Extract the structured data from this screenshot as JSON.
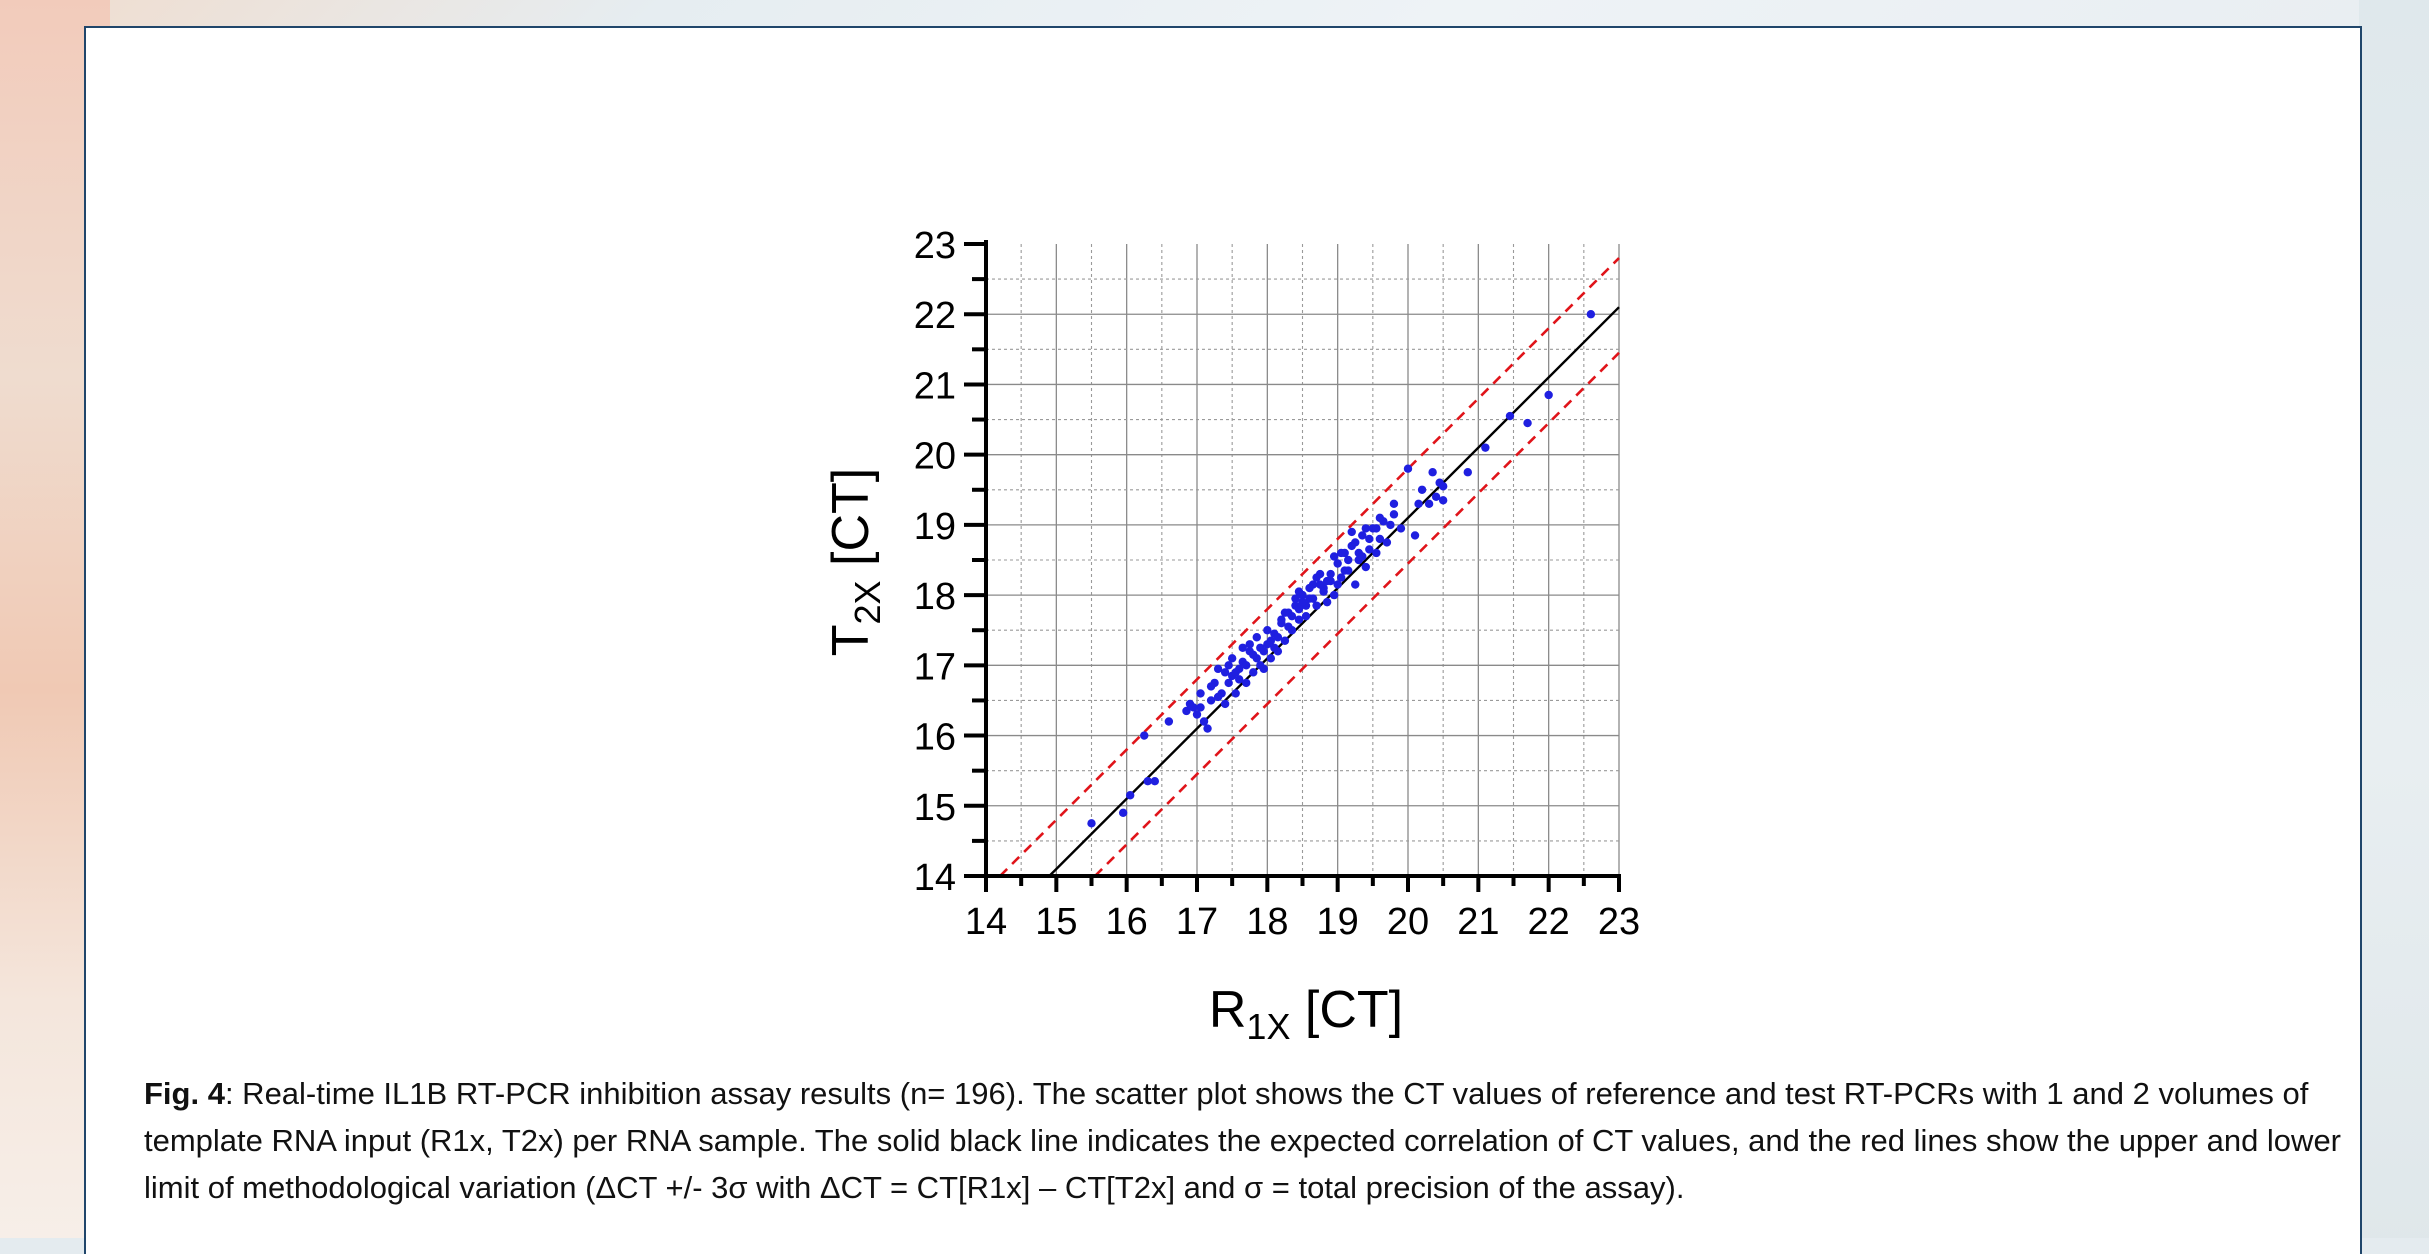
{
  "caption": {
    "label": "Fig. 4",
    "text": ": Real-time IL1B RT-PCR inhibition assay results (n= 196). The scatter plot shows the CT values of reference and test RT-PCRs with 1 and 2 volumes of template RNA input (R1x, T2x) per RNA sample. The solid black line indicates the expected correlation of CT values, and the red lines show the upper and lower limit of methodological variation (ΔCT +/- 3σ with ΔCT = CT[R1x] – CT[T2x] and σ = total precision of the assay)."
  },
  "colors": {
    "points": "#1f1fe0",
    "expected_line": "#000000",
    "limit_lines": "#e0141a",
    "frame": "#20466b"
  },
  "chart_data": {
    "type": "scatter",
    "xlabel": {
      "main": "R",
      "sub": "1X",
      "unit": " [CT]"
    },
    "ylabel": {
      "main": "T",
      "sub": "2X",
      "unit": " [CT]"
    },
    "xlim": [
      14,
      23
    ],
    "ylim": [
      14,
      23
    ],
    "xticks": [
      "14",
      "15",
      "16",
      "17",
      "18",
      "19",
      "20",
      "21",
      "22",
      "23"
    ],
    "yticks": [
      "14",
      "15",
      "16",
      "17",
      "18",
      "19",
      "20",
      "21",
      "22",
      "23"
    ],
    "grid": true,
    "lines": [
      {
        "style": "solid",
        "color": "#000000",
        "points": [
          [
            14.9,
            14.0
          ],
          [
            23.0,
            22.1
          ]
        ]
      },
      {
        "style": "dashed",
        "color": "#e0141a",
        "points": [
          [
            14.2,
            14.0
          ],
          [
            23.0,
            22.8
          ]
        ]
      },
      {
        "style": "dashed",
        "color": "#e0141a",
        "points": [
          [
            15.55,
            14.0
          ],
          [
            23.0,
            21.45
          ]
        ]
      }
    ],
    "points": [
      [
        15.5,
        14.75
      ],
      [
        15.95,
        14.9
      ],
      [
        16.05,
        15.15
      ],
      [
        16.25,
        16.0
      ],
      [
        16.3,
        15.35
      ],
      [
        16.4,
        15.35
      ],
      [
        16.85,
        16.35
      ],
      [
        16.9,
        16.45
      ],
      [
        17.0,
        16.3
      ],
      [
        17.05,
        16.4
      ],
      [
        17.1,
        16.2
      ],
      [
        17.15,
        16.1
      ],
      [
        17.2,
        16.5
      ],
      [
        17.25,
        16.75
      ],
      [
        17.3,
        16.95
      ],
      [
        17.35,
        16.6
      ],
      [
        17.4,
        16.45
      ],
      [
        17.45,
        16.75
      ],
      [
        17.5,
        16.85
      ],
      [
        17.55,
        16.6
      ],
      [
        17.6,
        16.95
      ],
      [
        17.65,
        17.05
      ],
      [
        17.7,
        16.75
      ],
      [
        17.75,
        17.2
      ],
      [
        17.8,
        16.9
      ],
      [
        17.85,
        17.1
      ],
      [
        17.9,
        17.25
      ],
      [
        17.95,
        16.95
      ],
      [
        18.0,
        17.3
      ],
      [
        18.05,
        17.1
      ],
      [
        18.1,
        17.45
      ],
      [
        18.15,
        17.2
      ],
      [
        18.2,
        17.6
      ],
      [
        18.25,
        17.35
      ],
      [
        18.3,
        17.75
      ],
      [
        18.35,
        17.5
      ],
      [
        18.4,
        17.85
      ],
      [
        18.45,
        17.65
      ],
      [
        18.5,
        18.0
      ],
      [
        18.55,
        17.7
      ],
      [
        18.6,
        17.95
      ],
      [
        18.65,
        18.15
      ],
      [
        18.7,
        17.85
      ],
      [
        18.75,
        18.3
      ],
      [
        18.8,
        18.05
      ],
      [
        18.85,
        17.9
      ],
      [
        18.9,
        18.2
      ],
      [
        18.95,
        18.0
      ],
      [
        19.0,
        18.45
      ],
      [
        19.05,
        18.25
      ],
      [
        19.1,
        18.6
      ],
      [
        19.15,
        18.35
      ],
      [
        19.2,
        18.7
      ],
      [
        19.25,
        18.15
      ],
      [
        19.3,
        18.5
      ],
      [
        19.35,
        18.85
      ],
      [
        19.4,
        18.4
      ],
      [
        19.45,
        18.65
      ],
      [
        19.5,
        18.95
      ],
      [
        19.55,
        18.6
      ],
      [
        19.6,
        18.8
      ],
      [
        19.65,
        19.05
      ],
      [
        19.7,
        18.75
      ],
      [
        19.8,
        19.15
      ],
      [
        19.9,
        18.95
      ],
      [
        20.0,
        19.8
      ],
      [
        20.1,
        18.85
      ],
      [
        20.2,
        19.5
      ],
      [
        20.3,
        19.3
      ],
      [
        20.35,
        19.75
      ],
      [
        20.4,
        19.4
      ],
      [
        20.45,
        19.6
      ],
      [
        20.5,
        19.35
      ],
      [
        20.85,
        19.75
      ],
      [
        21.1,
        20.1
      ],
      [
        21.45,
        20.55
      ],
      [
        21.7,
        20.45
      ],
      [
        22.0,
        20.85
      ],
      [
        22.6,
        22.0
      ],
      [
        16.95,
        16.4
      ],
      [
        17.2,
        16.7
      ],
      [
        17.4,
        16.9
      ],
      [
        17.55,
        16.9
      ],
      [
        17.7,
        17.0
      ],
      [
        17.8,
        17.15
      ],
      [
        17.95,
        17.2
      ],
      [
        18.05,
        17.35
      ],
      [
        18.15,
        17.4
      ],
      [
        18.3,
        17.55
      ],
      [
        18.45,
        17.8
      ],
      [
        18.55,
        17.85
      ],
      [
        18.65,
        17.95
      ],
      [
        18.8,
        18.1
      ],
      [
        18.9,
        18.3
      ],
      [
        19.0,
        18.15
      ],
      [
        19.15,
        18.5
      ],
      [
        19.3,
        18.6
      ],
      [
        19.45,
        18.8
      ],
      [
        19.55,
        18.95
      ],
      [
        17.05,
        16.6
      ],
      [
        17.3,
        16.55
      ],
      [
        17.6,
        16.8
      ],
      [
        17.9,
        17.0
      ],
      [
        18.1,
        17.25
      ],
      [
        18.35,
        17.7
      ],
      [
        18.6,
        18.1
      ],
      [
        18.85,
        18.2
      ],
      [
        19.1,
        18.35
      ],
      [
        19.35,
        18.55
      ],
      [
        17.45,
        17.0
      ],
      [
        17.75,
        17.3
      ],
      [
        18.0,
        17.5
      ],
      [
        18.25,
        17.75
      ],
      [
        18.5,
        17.9
      ],
      [
        18.75,
        18.15
      ],
      [
        19.05,
        18.6
      ],
      [
        19.25,
        18.75
      ],
      [
        17.85,
        17.4
      ],
      [
        18.2,
        17.65
      ],
      [
        18.4,
        17.95
      ],
      [
        18.7,
        18.25
      ],
      [
        19.2,
        18.9
      ],
      [
        19.4,
        18.95
      ],
      [
        19.6,
        19.1
      ],
      [
        19.75,
        19.0
      ],
      [
        17.5,
        17.1
      ],
      [
        18.95,
        18.55
      ],
      [
        20.15,
        19.3
      ],
      [
        20.5,
        19.55
      ],
      [
        16.6,
        16.2
      ],
      [
        17.65,
        17.25
      ],
      [
        18.45,
        18.05
      ],
      [
        19.8,
        19.3
      ]
    ]
  }
}
